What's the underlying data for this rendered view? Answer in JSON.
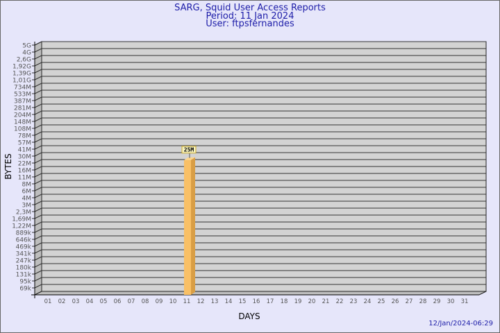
{
  "chart_data": {
    "type": "bar",
    "title": "SARG, Squid User Access Reports",
    "subtitle": [
      "Period: 11 Jan 2024",
      "User: ftpsfernandes"
    ],
    "xlabel": "DAYS",
    "ylabel": "BYTES",
    "y_tick_labels": [
      "5G",
      "4G",
      "2,6G",
      "1,92G",
      "1,39G",
      "1,01G",
      "734M",
      "533M",
      "387M",
      "281M",
      "204M",
      "148M",
      "108M",
      "78M",
      "57M",
      "41M",
      "30M",
      "22M",
      "16M",
      "11M",
      "8M",
      "6M",
      "4M",
      "3M",
      "2,3M",
      "1,69M",
      "1,22M",
      "889k",
      "646k",
      "469k",
      "341k",
      "247k",
      "180k",
      "131k",
      "95k",
      "69k"
    ],
    "categories": [
      "01",
      "02",
      "03",
      "04",
      "05",
      "06",
      "07",
      "08",
      "09",
      "10",
      "11",
      "12",
      "13",
      "14",
      "15",
      "16",
      "17",
      "18",
      "19",
      "20",
      "21",
      "22",
      "23",
      "24",
      "25",
      "26",
      "27",
      "28",
      "29",
      "30",
      "31"
    ],
    "bars": [
      {
        "day": "11",
        "value_label": "25M",
        "value": 25000000
      }
    ],
    "grid": true,
    "colors": {
      "bar": "#f9c066",
      "bar_side": "#d99e45",
      "plot": "#d3d3d3",
      "background": "#e6e6fa",
      "title": "#1c1ca8"
    }
  },
  "timestamp": "12/Jan/2024-06:29"
}
